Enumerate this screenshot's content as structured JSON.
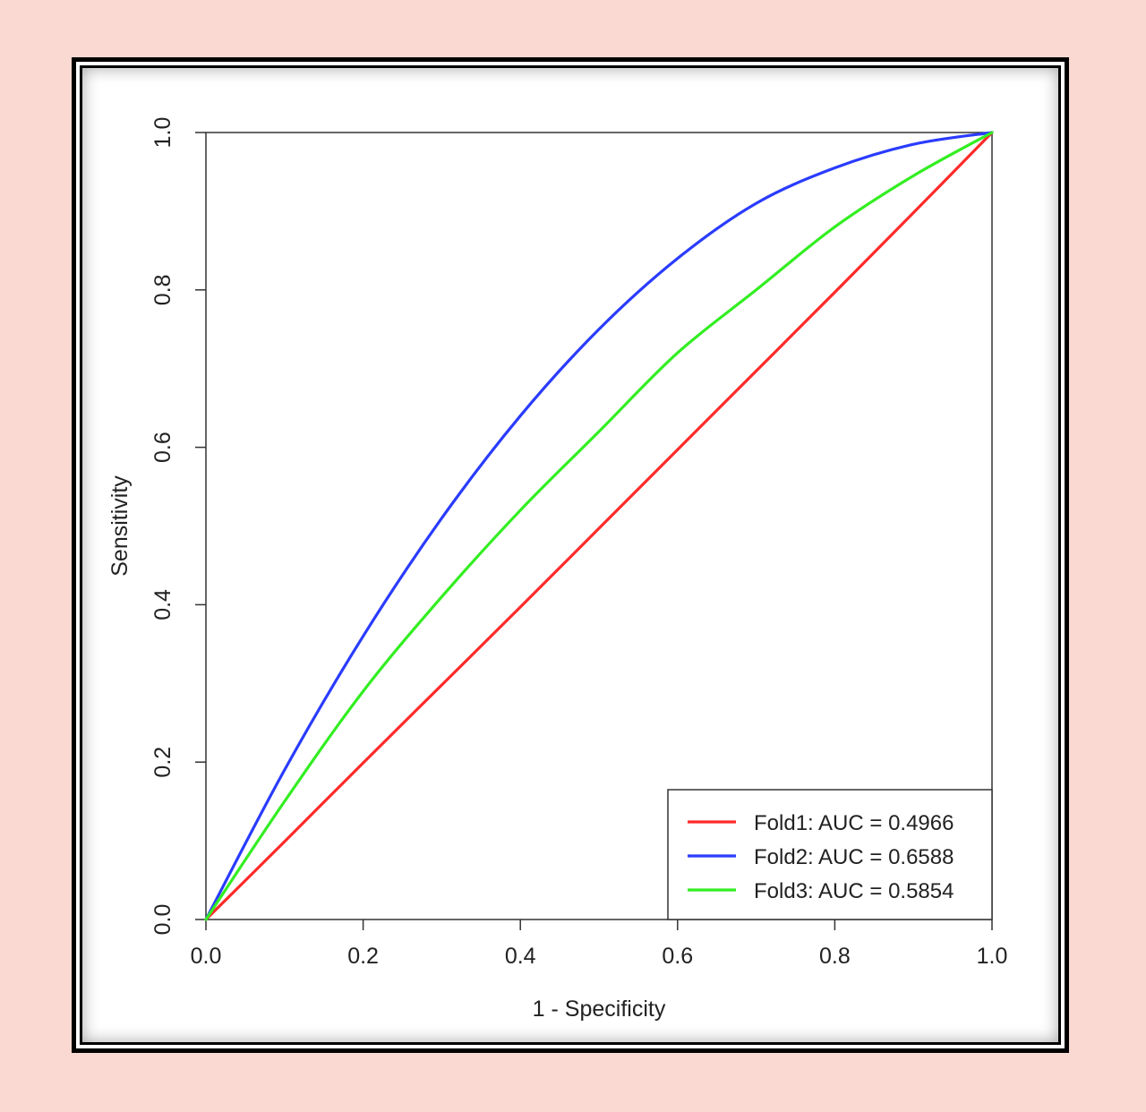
{
  "chart_data": {
    "type": "line",
    "xlabel": "1 - Specificity",
    "ylabel": "Sensitivity",
    "xlim": [
      0.0,
      1.0
    ],
    "ylim": [
      0.0,
      1.0
    ],
    "xticks": [
      "0.0",
      "0.2",
      "0.4",
      "0.6",
      "0.8",
      "1.0"
    ],
    "yticks": [
      "0.0",
      "0.2",
      "0.4",
      "0.6",
      "0.8",
      "1.0"
    ],
    "grid": false,
    "legend_position": "bottom-right",
    "series": [
      {
        "name": "Fold1: AUC = 0.4966",
        "color": "#ff2a2a",
        "x": [
          0.0,
          0.1,
          0.2,
          0.3,
          0.4,
          0.5,
          0.6,
          0.7,
          0.8,
          0.9,
          1.0
        ],
        "y": [
          0.0,
          0.099,
          0.199,
          0.298,
          0.397,
          0.497,
          0.597,
          0.697,
          0.797,
          0.898,
          1.0
        ]
      },
      {
        "name": "Fold2: AUC = 0.6588",
        "color": "#2a3cff",
        "x": [
          0.0,
          0.1,
          0.2,
          0.3,
          0.4,
          0.5,
          0.6,
          0.7,
          0.8,
          0.9,
          1.0
        ],
        "y": [
          0.0,
          0.19,
          0.36,
          0.51,
          0.64,
          0.75,
          0.84,
          0.91,
          0.955,
          0.985,
          1.0
        ]
      },
      {
        "name": "Fold3: AUC = 0.5854",
        "color": "#33ee22",
        "x": [
          0.0,
          0.1,
          0.2,
          0.3,
          0.4,
          0.5,
          0.6,
          0.7,
          0.8,
          0.9,
          1.0
        ],
        "y": [
          0.0,
          0.15,
          0.29,
          0.41,
          0.52,
          0.62,
          0.72,
          0.8,
          0.88,
          0.945,
          1.0
        ]
      }
    ]
  }
}
